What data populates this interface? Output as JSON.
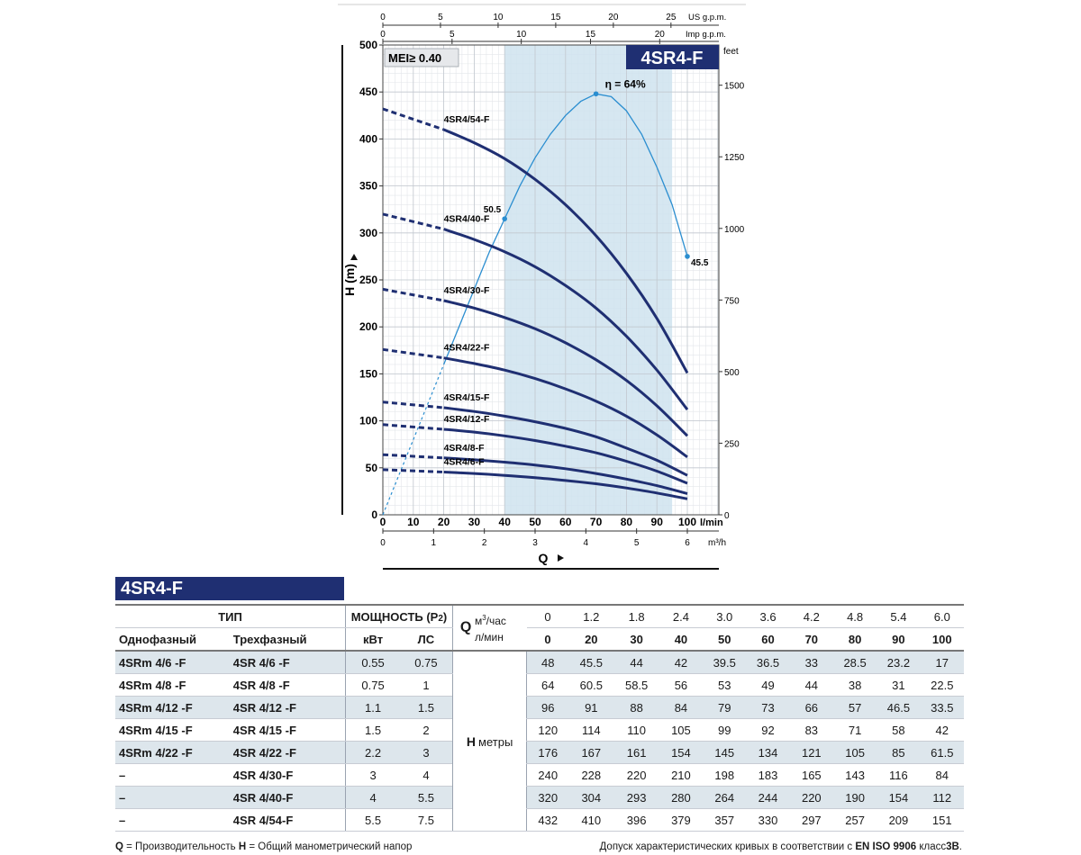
{
  "chart_data": {
    "type": "line",
    "title": "4SR4-F",
    "badge": "MEI≥ 0.40",
    "ylabel": "H (m)",
    "xlabel": "Q",
    "x_unit": "l/min",
    "ylim": [
      0,
      500
    ],
    "xlim": [
      0,
      100
    ],
    "y_ticks": [
      0,
      50,
      100,
      150,
      200,
      250,
      300,
      350,
      400,
      450,
      500
    ],
    "x_ticks": [
      0,
      10,
      20,
      30,
      40,
      50,
      60,
      70,
      80,
      90,
      100
    ],
    "right_axis": {
      "unit": "feet",
      "ticks": [
        "0",
        "250",
        "500",
        "750",
        "1000",
        "1250",
        "1500"
      ]
    },
    "top_axis_usgpm": {
      "unit": "US g.p.m.",
      "ticks": [
        "0",
        "5",
        "10",
        "15",
        "20",
        "25"
      ]
    },
    "top_axis_impgpm": {
      "unit": "Imp g.p.m.",
      "ticks": [
        "0",
        "5",
        "10",
        "15",
        "20"
      ]
    },
    "bottom_axis_m3h": {
      "unit": "m³/h",
      "ticks": [
        "0",
        "1",
        "2",
        "3",
        "4",
        "5",
        "6"
      ]
    },
    "recommended_range": [
      40,
      95
    ],
    "x": [
      0,
      20,
      30,
      40,
      50,
      60,
      70,
      80,
      90,
      100
    ],
    "series": [
      {
        "name": "4SR4/54-F",
        "values": [
          432,
          410,
          396,
          379,
          357,
          330,
          297,
          257,
          209,
          151
        ]
      },
      {
        "name": "4SR4/40-F",
        "values": [
          320,
          304,
          293,
          280,
          264,
          244,
          220,
          190,
          154,
          112
        ]
      },
      {
        "name": "4SR4/30-F",
        "values": [
          240,
          228,
          220,
          210,
          198,
          183,
          165,
          143,
          116,
          84
        ]
      },
      {
        "name": "4SR4/22-F",
        "values": [
          176,
          167,
          161,
          154,
          145,
          134,
          121,
          105,
          85,
          61.5
        ]
      },
      {
        "name": "4SR4/15-F",
        "values": [
          120,
          114,
          110,
          105,
          99,
          92,
          83,
          71,
          58,
          42
        ]
      },
      {
        "name": "4SR4/12-F",
        "values": [
          96,
          91,
          88,
          84,
          79,
          73,
          66,
          57,
          46.5,
          33.5
        ]
      },
      {
        "name": "4SR4/8-F",
        "values": [
          64,
          60.5,
          58.5,
          56,
          53,
          49,
          44,
          38,
          31,
          22.5
        ]
      },
      {
        "name": "4SR4/6-F",
        "values": [
          48,
          45.5,
          44,
          42,
          39.5,
          36.5,
          33,
          28.5,
          23.2,
          17
        ]
      }
    ],
    "efficiency": {
      "label": "η = 64%",
      "x": [
        0,
        5,
        10,
        15,
        20,
        25,
        30,
        35,
        40,
        45,
        50,
        55,
        60,
        65,
        70,
        75,
        80,
        85,
        90,
        95,
        100
      ],
      "values": [
        0,
        40,
        80,
        120,
        160,
        200,
        240,
        280,
        315,
        350,
        380,
        405,
        425,
        440,
        448,
        445,
        430,
        405,
        370,
        330,
        275
      ],
      "points": [
        {
          "x": 40,
          "y": 315,
          "label": "50.5"
        },
        {
          "x": 70,
          "y": 448,
          "label": ""
        },
        {
          "x": 100,
          "y": 275,
          "label": "45.5"
        }
      ]
    }
  },
  "table": {
    "banner": "4SR4-F",
    "h_type": "ТИП",
    "h_power": "МОЩНОСТЬ (P2)",
    "h_q": "Q",
    "unit_m3h": "м³/час",
    "unit_lmin": "л/мин",
    "h_single": "Однофазный",
    "h_three": "Трехфазный",
    "h_kw": "кВт",
    "h_hp": "ЛС",
    "h_label": "H",
    "h_unit": "метры",
    "q_m3h": [
      "0",
      "1.2",
      "1.8",
      "2.4",
      "3.0",
      "3.6",
      "4.2",
      "4.8",
      "5.4",
      "6.0"
    ],
    "q_lmin": [
      "0",
      "20",
      "30",
      "40",
      "50",
      "60",
      "70",
      "80",
      "90",
      "100"
    ],
    "rows": [
      {
        "single": "4SRm 4/6   -F",
        "three": "4SR 4/6   -F",
        "kw": "0.55",
        "hp": "0.75",
        "h": [
          "48",
          "45.5",
          "44",
          "42",
          "39.5",
          "36.5",
          "33",
          "28.5",
          "23.2",
          "17"
        ]
      },
      {
        "single": "4SRm 4/8   -F",
        "three": "4SR 4/8   -F",
        "kw": "0.75",
        "hp": "1",
        "h": [
          "64",
          "60.5",
          "58.5",
          "56",
          "53",
          "49",
          "44",
          "38",
          "31",
          "22.5"
        ]
      },
      {
        "single": "4SRm 4/12 -F",
        "three": "4SR 4/12 -F",
        "kw": "1.1",
        "hp": "1.5",
        "h": [
          "96",
          "91",
          "88",
          "84",
          "79",
          "73",
          "66",
          "57",
          "46.5",
          "33.5"
        ]
      },
      {
        "single": "4SRm 4/15 -F",
        "three": "4SR 4/15 -F",
        "kw": "1.5",
        "hp": "2",
        "h": [
          "120",
          "114",
          "110",
          "105",
          "99",
          "92",
          "83",
          "71",
          "58",
          "42"
        ]
      },
      {
        "single": "4SRm 4/22 -F",
        "three": "4SR 4/22 -F",
        "kw": "2.2",
        "hp": "3",
        "h": [
          "176",
          "167",
          "161",
          "154",
          "145",
          "134",
          "121",
          "105",
          "85",
          "61.5"
        ]
      },
      {
        "single": "–",
        "three": "4SR 4/30-F",
        "kw": "3",
        "hp": "4",
        "h": [
          "240",
          "228",
          "220",
          "210",
          "198",
          "183",
          "165",
          "143",
          "116",
          "84"
        ]
      },
      {
        "single": "–",
        "three": "4SR 4/40-F",
        "kw": "4",
        "hp": "5.5",
        "h": [
          "320",
          "304",
          "293",
          "280",
          "264",
          "244",
          "220",
          "190",
          "154",
          "112"
        ]
      },
      {
        "single": "–",
        "three": "4SR 4/54-F",
        "kw": "5.5",
        "hp": "7.5",
        "h": [
          "432",
          "410",
          "396",
          "379",
          "357",
          "330",
          "297",
          "257",
          "209",
          "151"
        ]
      }
    ]
  },
  "footer": {
    "left_q": "Q",
    "left_q_text": " = Производительность  ",
    "left_h": "H",
    "left_h_text": " = Общий манометрический напор",
    "right_text": "Допуск характеристических кривых в соответствии с ",
    "right_std": "EN ISO 9906",
    "right_class": " класс",
    "right_class_val": "3B",
    "right_end": "."
  }
}
